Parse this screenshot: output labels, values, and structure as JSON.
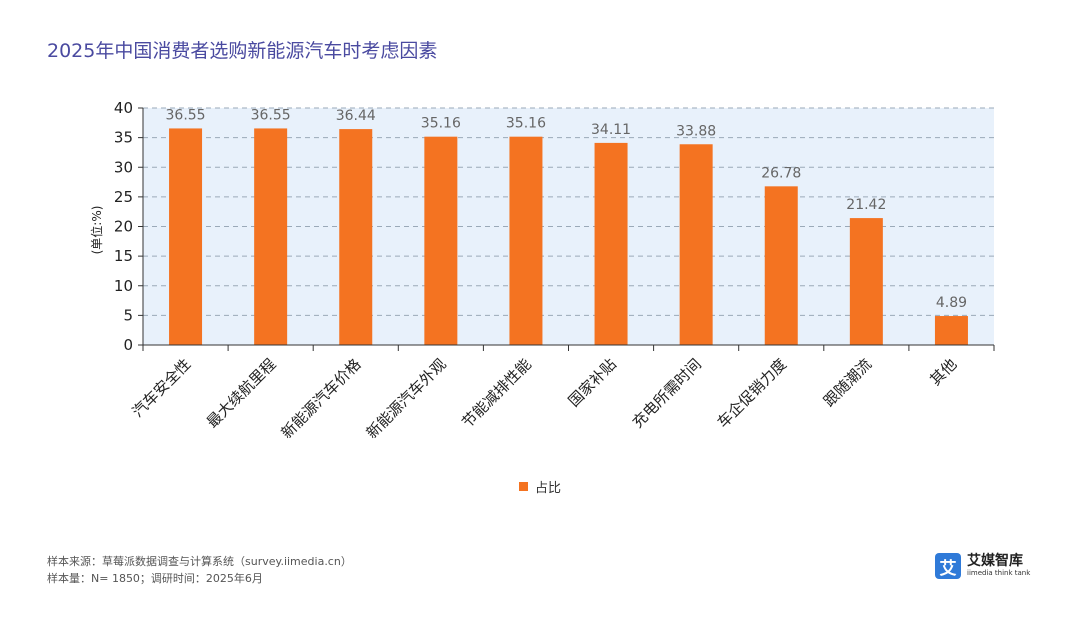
{
  "title": "2025年中国消费者选购新能源汽车时考虑因素",
  "chart_data": {
    "type": "bar",
    "title": "2025年中国消费者选购新能源汽车时考虑因素",
    "ylabel": "(单位:%)",
    "xlabel": "",
    "ylim": [
      0,
      40
    ],
    "yticks": [
      0,
      5,
      10,
      15,
      20,
      25,
      30,
      35,
      40
    ],
    "grid": true,
    "legend_position": "bottom-center",
    "categories": [
      "汽车安全性",
      "最大续航里程",
      "新能源汽车价格",
      "新能源汽车外观",
      "节能减排性能",
      "国家补贴",
      "充电所需时间",
      "车企促销力度",
      "跟随潮流",
      "其他"
    ],
    "series": [
      {
        "name": "占比",
        "values": [
          36.55,
          36.55,
          36.44,
          35.16,
          35.16,
          34.11,
          33.88,
          26.78,
          21.42,
          4.89
        ],
        "color": "#f47321"
      }
    ]
  },
  "footer": {
    "source": "样本来源：草莓派数据调查与计算系统（survey.iimedia.cn）",
    "sample": "样本量：N= 1850；调研时间：2025年6月"
  },
  "brand": {
    "logo_char": "艾",
    "name": "艾媒智库",
    "sub": "iimedia think tank"
  },
  "colors": {
    "bar": "#f47321",
    "plot_bg": "#e8f1fb",
    "grid": "#9aa9b8",
    "title": "#4a4aa0"
  }
}
